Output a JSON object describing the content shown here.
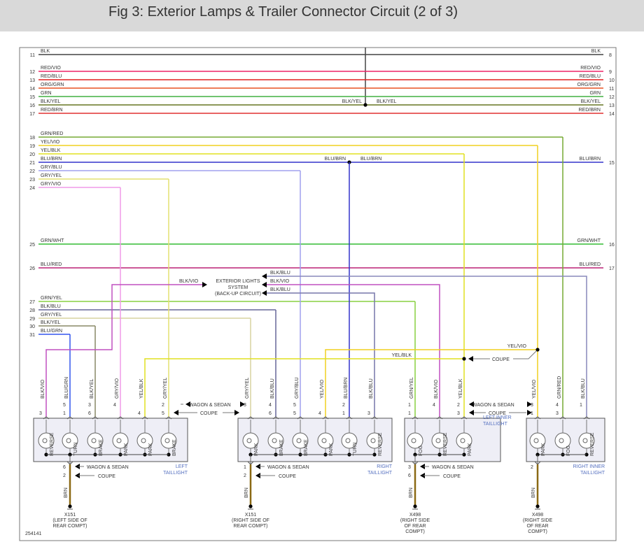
{
  "title": "Fig 3: Exterior Lamps & Trailer Connector Circuit (2 of 3)",
  "figure_id": "254141",
  "wires": [
    {
      "num": "11",
      "label": "BLK",
      "color": "#444444",
      "right_num": "8",
      "right_label": "BLK"
    },
    {
      "num": "12",
      "label": "RED/VIO",
      "color": "#ee2266",
      "right_num": "9",
      "right_label": "RED/VIO"
    },
    {
      "num": "13",
      "label": "RED/BLU",
      "color": "#e02020",
      "right_num": "10",
      "right_label": "RED/BLU"
    },
    {
      "num": "14",
      "label": "ORG/GRN",
      "color": "#e85020",
      "right_num": "11",
      "right_label": "ORG/GRN"
    },
    {
      "num": "15",
      "label": "GRN",
      "color": "#40b040",
      "right_num": "12",
      "right_label": "GRN"
    },
    {
      "num": "16",
      "label": "BLK/YEL",
      "color": "#667722",
      "right_num": "13",
      "right_label": "BLK/YEL",
      "splice_labels": [
        "BLK/YEL",
        "BLK/YEL"
      ]
    },
    {
      "num": "17",
      "label": "RED/BRN",
      "color": "#e03030",
      "right_num": "14",
      "right_label": "RED/BRN"
    },
    {
      "num": "18",
      "label": "GRN/RED",
      "color": "#77aa33"
    },
    {
      "num": "19",
      "label": "YEL/VIO",
      "color": "#f0d020"
    },
    {
      "num": "20",
      "label": "YEL/BLK",
      "color": "#e0e020"
    },
    {
      "num": "21",
      "label": "BLU/BRN",
      "color": "#3333cc",
      "right_num": "15",
      "right_label": "BLU/BRN",
      "splice_labels": [
        "BLU/BRN",
        "BLU/BRN"
      ]
    },
    {
      "num": "22",
      "label": "GRY/BLU",
      "color": "#a0a0ee"
    },
    {
      "num": "23",
      "label": "GRY/YEL",
      "color": "#e4e070"
    },
    {
      "num": "24",
      "label": "GRY/VIO",
      "color": "#f09ae8"
    },
    {
      "num": "25",
      "label": "GRN/WHT",
      "color": "#33bb33",
      "right_num": "16",
      "right_label": "GRN/WHT"
    },
    {
      "num": "26",
      "label": "BLU/RED",
      "color": "#bb2277",
      "right_num": "17",
      "right_label": "BLU/RED"
    },
    {
      "num": "27",
      "label": "GRN/YEL",
      "color": "#88d040"
    },
    {
      "num": "28",
      "label": "BLK/BLU",
      "color": "#666699"
    },
    {
      "num": "29",
      "label": "GRY/YEL",
      "color": "#d8d4a0"
    },
    {
      "num": "30",
      "label": "BLK/YEL",
      "color": "#888866"
    },
    {
      "num": "31",
      "label": "BLU/GRN",
      "color": "#3355ee"
    }
  ],
  "system": {
    "lines": [
      "EXTERIOR LIGHTS",
      "SYSTEM",
      "(BACK-UP CIRCUIT)"
    ],
    "in_label": "BLK/VIO",
    "out_labels": [
      "BLK/BLU",
      "BLK/VIO",
      "BLK/BLU"
    ]
  },
  "splices": {
    "yel_vio": "YEL/VIO",
    "yel_blk": "YEL/BLK",
    "coupe": "COUPE"
  },
  "variants": {
    "wagon": "WAGON & SEDAN",
    "coupe": "COUPE"
  },
  "ground_wire": "BRN",
  "lamps": [
    {
      "name": [
        "LEFT",
        "TAILLIGHT"
      ],
      "pins": [
        {
          "wire": "BLK/VIO",
          "a": "",
          "b": "3",
          "color": "#c050c0",
          "bulb": "REVERSE"
        },
        {
          "wire": "BLU/GRN",
          "a": "5",
          "b": "1",
          "color": "#3355ee",
          "bulb": "TURN"
        },
        {
          "wire": "BLK/YEL",
          "a": "3",
          "b": "6",
          "color": "#888866",
          "bulb": "BRAKE"
        },
        {
          "wire": "GRY/VIO",
          "a": "4",
          "b": "",
          "color": "#f09ae8",
          "bulb": "PARK"
        },
        {
          "wire": "YEL/BLK",
          "a": "",
          "b": "4",
          "color": "#e0e020",
          "bulb": "PARK"
        },
        {
          "wire": "GRY/YEL",
          "a": "2",
          "b": "5",
          "color": "#e4e070",
          "bulb": "BRAKE"
        }
      ],
      "ground": {
        "a": "6",
        "b": "2",
        "connector": [
          "X151",
          "(LEFT SIDE OF",
          "REAR COMPT)"
        ]
      }
    },
    {
      "name": [
        "RIGHT",
        "TAILLIGHT"
      ],
      "pins": [
        {
          "wire": "GRY/YEL",
          "a": "3",
          "b": "",
          "color": "#d8d4a0",
          "bulb": "PARK"
        },
        {
          "wire": "BLK/BLU",
          "a": "4",
          "b": "6",
          "color": "#666699",
          "bulb": "BRAKE"
        },
        {
          "wire": "GRY/BLU",
          "a": "5",
          "b": "5",
          "color": "#a0a0ee",
          "bulb": "BRAKE"
        },
        {
          "wire": "YEL/VIO",
          "a": "",
          "b": "4",
          "color": "#f0d020",
          "bulb": "PARK"
        },
        {
          "wire": "BLU/BRN",
          "a": "2",
          "b": "1",
          "color": "#3333cc",
          "bulb": "TURN"
        },
        {
          "wire": "BLK/BLU",
          "a": "",
          "b": "3",
          "color": "#7777aa",
          "bulb": "REVERSE"
        }
      ],
      "ground": {
        "a": "1",
        "b": "2",
        "connector": [
          "X151",
          "(RIGHT SIDE OF",
          "REAR COMPT)"
        ]
      }
    },
    {
      "name": [
        "LEFT INNER",
        "TAILLIGHT"
      ],
      "pins": [
        {
          "wire": "GRN/YEL",
          "a": "1",
          "b": "1",
          "color": "#88d040",
          "bulb": "FOG"
        },
        {
          "wire": "BLK/VIO",
          "a": "4",
          "b": "",
          "color": "#c050c0",
          "bulb": "REVERSE"
        },
        {
          "wire": "YEL/BLK",
          "a": "2",
          "b": "3",
          "color": "#e0e020",
          "bulb": "PARK"
        }
      ],
      "ground": {
        "a": "3",
        "b": "6",
        "connector": [
          "X498",
          "(RIGHT SIDE",
          "OF REAR",
          "COMPT)"
        ]
      }
    },
    {
      "name": [
        "RIGHT INNER",
        "TAILLIGHT"
      ],
      "pins": [
        {
          "wire": "YEL/VIO",
          "a": "3",
          "b": "1",
          "color": "#f0d020",
          "bulb": "PARK"
        },
        {
          "wire": "GRN/RED",
          "a": "4",
          "b": "3",
          "color": "#77aa33",
          "bulb": "FOG"
        },
        {
          "wire": "BLK/BLU",
          "a": "1",
          "b": "",
          "color": "#8888bb",
          "bulb": "REVERSE"
        }
      ],
      "ground": {
        "a": "2",
        "b": "",
        "connector": [
          "X498",
          "(RIGHT SIDE",
          "OF REAR",
          "COMPT)"
        ]
      }
    }
  ],
  "colors": {
    "ground": "#8b6914",
    "label_blue": "#5570c0",
    "box_fill": "#eeeef6",
    "header_bg": "#d9d9d9"
  }
}
